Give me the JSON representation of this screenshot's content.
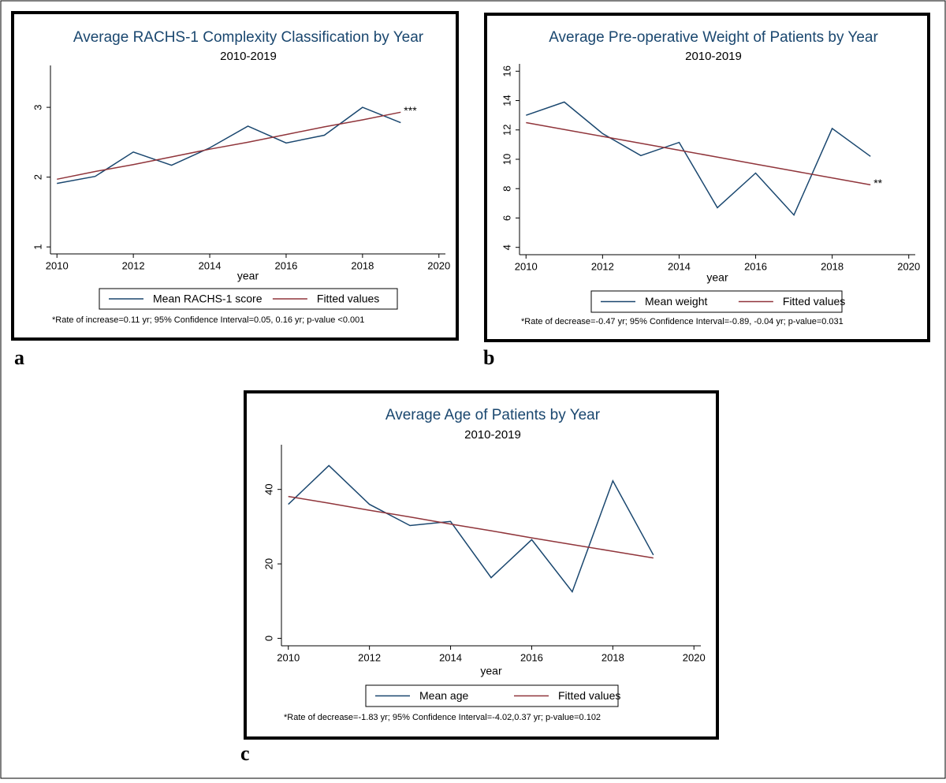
{
  "chart_data": [
    {
      "type": "line",
      "panel": "a",
      "title": "Average RACHS-1 Complexity Classification by Year",
      "subtitle": "2010-2019",
      "x_label": "year",
      "x": [
        2010,
        2011,
        2012,
        2013,
        2014,
        2015,
        2016,
        2017,
        2018,
        2019
      ],
      "series": [
        {
          "name": "Mean RACHS-1 score",
          "color": "#1a476f",
          "values": [
            1.91,
            2.01,
            2.36,
            2.17,
            2.42,
            2.73,
            2.49,
            2.6,
            3.0,
            2.78
          ]
        },
        {
          "name": "Fitted values",
          "color": "#90353b",
          "values": [
            1.97,
            2.08,
            2.18,
            2.29,
            2.4,
            2.5,
            2.61,
            2.72,
            2.82,
            2.93
          ]
        }
      ],
      "annotation": "***",
      "note": "*Rate of increase=0.11 yr; 95% Confidence Interval=0.05, 0.16 yr; p-value <0.001",
      "xlim": [
        2009.83,
        2020.17
      ],
      "xticks": [
        2010,
        2012,
        2014,
        2016,
        2018,
        2020
      ],
      "ylim": [
        0.9,
        3.6
      ],
      "yticks": [
        1,
        2,
        3
      ],
      "grid": false
    },
    {
      "type": "line",
      "panel": "b",
      "title": "Average Pre-operative Weight of Patients by Year",
      "subtitle": "2010-2019",
      "x_label": "year",
      "x": [
        2010,
        2011,
        2012,
        2013,
        2014,
        2015,
        2016,
        2017,
        2018,
        2019
      ],
      "series": [
        {
          "name": "Mean weight",
          "color": "#1a476f",
          "values": [
            13.0,
            13.9,
            11.75,
            10.25,
            11.15,
            6.7,
            9.06,
            6.2,
            12.1,
            10.2
          ]
        },
        {
          "name": "Fitted values",
          "color": "#90353b",
          "values": [
            12.5,
            12.03,
            11.56,
            11.09,
            10.62,
            10.15,
            9.67,
            9.2,
            8.73,
            8.26
          ]
        }
      ],
      "annotation": "**",
      "note": "*Rate of decrease=-0.47 yr; 95% Confidence Interval=-0.89, -0.04 yr; p-value=0.031",
      "xlim": [
        2009.83,
        2020.17
      ],
      "xticks": [
        2010,
        2012,
        2014,
        2016,
        2018,
        2020
      ],
      "ylim": [
        3.5,
        16.5
      ],
      "yticks": [
        4,
        6,
        8,
        10,
        12,
        14,
        16
      ],
      "grid": false
    },
    {
      "type": "line",
      "panel": "c",
      "title": "Average Age of Patients by Year",
      "subtitle": "2010-2019",
      "x_label": "year",
      "x": [
        2010,
        2011,
        2012,
        2013,
        2014,
        2015,
        2016,
        2017,
        2018,
        2019
      ],
      "series": [
        {
          "name": "Mean age",
          "color": "#1a476f",
          "values": [
            36,
            46.4,
            36,
            30.3,
            31.4,
            16.3,
            26.5,
            12.5,
            42.3,
            22.4
          ]
        },
        {
          "name": "Fitted values",
          "color": "#90353b",
          "values": [
            38.1,
            36.3,
            34.4,
            32.6,
            30.7,
            28.9,
            27.0,
            25.2,
            23.4,
            21.6
          ]
        }
      ],
      "note": "*Rate of decrease=-1.83 yr; 95% Confidence Interval=-4.02,0.37 yr; p-value=0.102",
      "xlim": [
        2009.83,
        2020.17
      ],
      "xticks": [
        2010,
        2012,
        2014,
        2016,
        2018,
        2020
      ],
      "ylim": [
        -2,
        52
      ],
      "yticks": [
        0,
        20,
        40
      ],
      "grid": false
    }
  ]
}
